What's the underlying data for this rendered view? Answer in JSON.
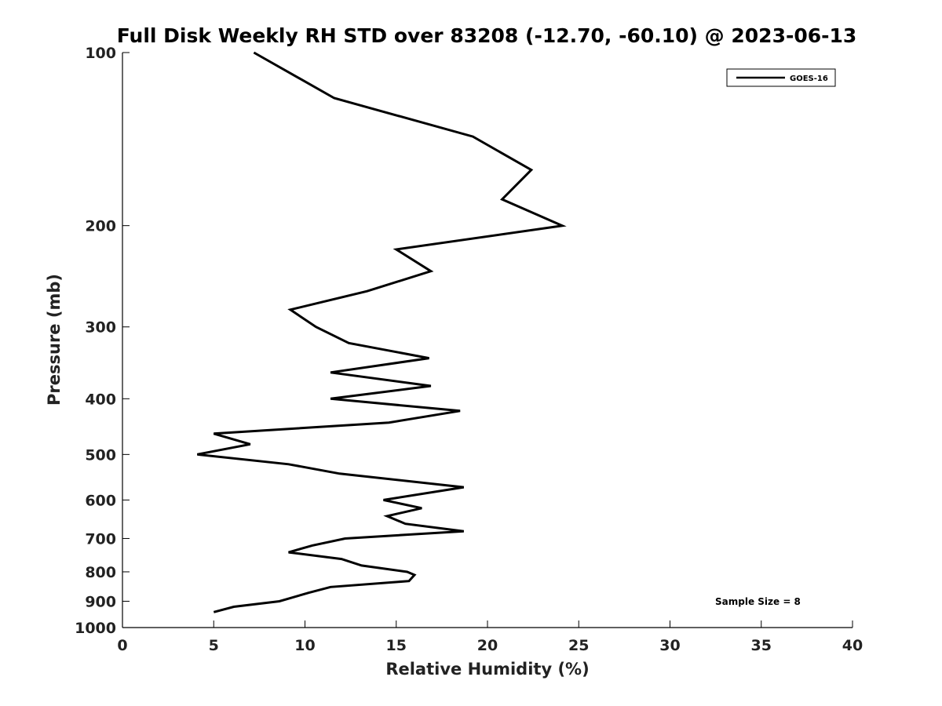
{
  "chart_data": {
    "type": "line",
    "title": "Full Disk Weekly RH STD over 83208 (-12.70, -60.10) @ 2023-06-13",
    "xlabel": "Relative Humidity (%)",
    "ylabel": "Pressure (mb)",
    "xlim": [
      0,
      40
    ],
    "ylim": [
      1000,
      100
    ],
    "yscale": "log",
    "grid": false,
    "legend_position": "top-right",
    "x_ticks": [
      "0",
      "5",
      "10",
      "15",
      "20",
      "25",
      "30",
      "35",
      "40"
    ],
    "y_ticks": [
      "100",
      "200",
      "300",
      "400",
      "500",
      "600",
      "700",
      "800",
      "900",
      "1000"
    ],
    "series": [
      {
        "name": "GOES-16",
        "color": "#000000",
        "x": [
          7.2,
          11.6,
          19.2,
          22.4,
          20.8,
          24.1,
          15.0,
          16.9,
          13.4,
          9.2,
          10.6,
          12.4,
          16.8,
          11.4,
          16.9,
          11.4,
          18.5,
          14.6,
          5.0,
          7.0,
          4.1,
          9.1,
          11.9,
          18.7,
          14.3,
          16.4,
          14.5,
          15.5,
          18.7,
          12.2,
          10.4,
          9.1,
          12.0,
          13.1,
          15.6,
          16.0,
          15.7,
          11.4,
          10.2,
          8.6,
          6.1,
          5.0
        ],
        "y": [
          100,
          120,
          140,
          160,
          180,
          200,
          220,
          240,
          260,
          280,
          300,
          320,
          340,
          360,
          380,
          400,
          420,
          440,
          460,
          480,
          500,
          520,
          540,
          570,
          600,
          620,
          640,
          660,
          680,
          700,
          720,
          740,
          760,
          780,
          800,
          810,
          830,
          850,
          870,
          900,
          920,
          940
        ]
      }
    ],
    "annotation": "Sample Size = 8"
  }
}
